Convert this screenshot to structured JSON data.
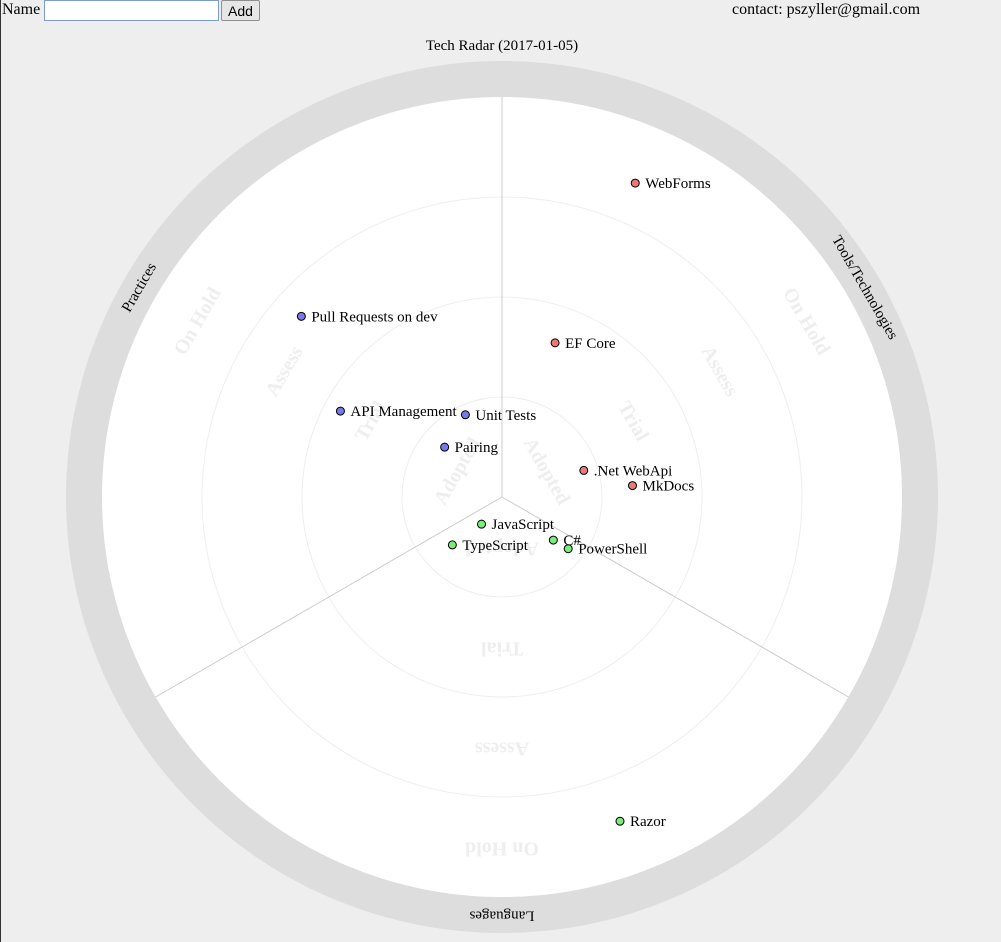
{
  "form": {
    "name_label": "Name",
    "name_value": "",
    "add_label": "Add"
  },
  "contact": "contact: pszyller@gmail.com",
  "title": "Tech Radar (2017-01-05)",
  "colors": {
    "Practices": "#7777ee",
    "Tools/Technologies": "#ee7777",
    "Languages": "#77ee77"
  },
  "rings": [
    "Adopted",
    "Trial",
    "Assess",
    "On Hold"
  ],
  "quadrants": [
    {
      "name": "Practices",
      "ring_labels": [
        "Adopted",
        "Trial",
        "Assess",
        "On Hold"
      ]
    },
    {
      "name": "Tools/Technologies",
      "ring_labels": [
        "Adopted",
        "Trial",
        "Assess",
        "On Hold"
      ]
    },
    {
      "name": "Languages",
      "ring_labels": [
        "Adopted",
        "Trial",
        "Assess",
        "On Hold"
      ]
    }
  ],
  "chart_data": {
    "type": "scatter",
    "title": "Tech Radar (2017-01-05)",
    "blips": [
      {
        "label": "Pull Requests on dev",
        "quadrant": "Practices",
        "ring": "Assess",
        "r": 2.7,
        "angle": 312
      },
      {
        "label": "API Management",
        "quadrant": "Practices",
        "ring": "Trial",
        "r": 1.83,
        "angle": 298
      },
      {
        "label": "Unit Tests",
        "quadrant": "Practices",
        "ring": "Adopted",
        "r": 0.9,
        "angle": 336
      },
      {
        "label": "Pairing",
        "quadrant": "Practices",
        "ring": "Adopted",
        "r": 0.76,
        "angle": 311
      },
      {
        "label": "WebForms",
        "quadrant": "Tools/Technologies",
        "ring": "On Hold",
        "r": 3.41,
        "angle": 23
      },
      {
        "label": "EF Core",
        "quadrant": "Tools/Technologies",
        "ring": "Trial",
        "r": 1.63,
        "angle": 19
      },
      {
        "label": ".Net WebApi",
        "quadrant": "Tools/Technologies",
        "ring": "Adopted",
        "r": 0.86,
        "angle": 72
      },
      {
        "label": "MkDocs",
        "quadrant": "Tools/Technologies",
        "ring": "Trial",
        "r": 1.31,
        "angle": 85
      },
      {
        "label": "JavaScript",
        "quadrant": "Languages",
        "ring": "Adopted",
        "r": 0.34,
        "angle": 217
      },
      {
        "label": "C#",
        "quadrant": "Languages",
        "ring": "Adopted",
        "r": 0.67,
        "angle": 130
      },
      {
        "label": "PowerShell",
        "quadrant": "Languages",
        "ring": "Adopted",
        "r": 0.84,
        "angle": 128
      },
      {
        "label": "TypeScript",
        "quadrant": "Languages",
        "ring": "Adopted",
        "r": 0.69,
        "angle": 226
      },
      {
        "label": "Razor",
        "quadrant": "Languages",
        "ring": "On Hold",
        "r": 3.45,
        "angle": 160
      }
    ]
  }
}
